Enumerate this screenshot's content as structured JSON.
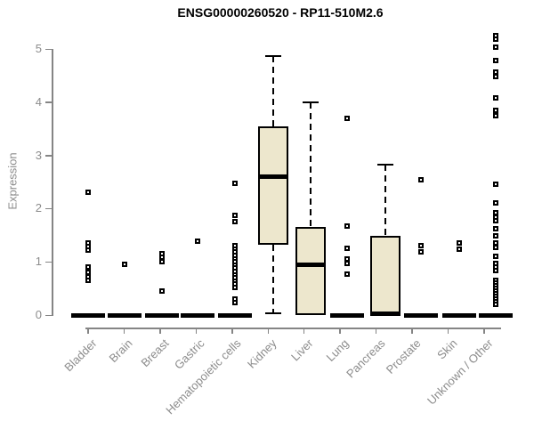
{
  "colors": {
    "box_fill": "#EDE7CD",
    "box_stroke": "#000000",
    "axis": "#858585",
    "label_text": "#8c8c8c",
    "title_text": "#000000",
    "background": "#ffffff"
  },
  "chart_data": {
    "type": "box",
    "title": "ENSG00000260520 - RP11-510M2.6",
    "xlabel": "",
    "ylabel": "Expression",
    "ylim": [
      0,
      5.3
    ],
    "yticks": [
      0,
      1,
      2,
      3,
      4,
      5
    ],
    "grid": false,
    "legend": false,
    "categories": [
      "Bladder",
      "Brain",
      "Breast",
      "Gastric",
      "Hematopoietic cells",
      "Kidney",
      "Liver",
      "Lung",
      "Pancreas",
      "Prostate",
      "Skin",
      "Unknown / Other"
    ],
    "boxes": [
      {
        "category": "Bladder",
        "q1": 0,
        "median": 0,
        "q3": 0,
        "whisker_low": 0,
        "whisker_high": 0,
        "outliers": [
          2.3,
          1.35,
          1.28,
          1.22,
          0.9,
          0.8,
          0.72,
          0.65
        ]
      },
      {
        "category": "Brain",
        "q1": 0,
        "median": 0,
        "q3": 0,
        "whisker_low": 0,
        "whisker_high": 0,
        "outliers": [
          0.95
        ]
      },
      {
        "category": "Breast",
        "q1": 0,
        "median": 0,
        "q3": 0,
        "whisker_low": 0,
        "whisker_high": 0,
        "outliers": [
          1.15,
          1.08,
          1.0,
          0.45
        ]
      },
      {
        "category": "Gastric",
        "q1": 0,
        "median": 0,
        "q3": 0,
        "whisker_low": 0,
        "whisker_high": 0,
        "outliers": [
          1.38
        ]
      },
      {
        "category": "Hematopoietic cells",
        "q1": 0,
        "median": 0,
        "q3": 0,
        "whisker_low": 0,
        "whisker_high": 0,
        "outliers": [
          2.48,
          1.88,
          1.76,
          1.3,
          1.24,
          1.18,
          1.12,
          1.06,
          1.0,
          0.94,
          0.88,
          0.82,
          0.76,
          0.7,
          0.64,
          0.58,
          0.52,
          0.3,
          0.24
        ]
      },
      {
        "category": "Kidney",
        "q1": 1.32,
        "median": 2.6,
        "q3": 3.55,
        "whisker_low": 0.03,
        "whisker_high": 4.87,
        "outliers": []
      },
      {
        "category": "Liver",
        "q1": 0,
        "median": 0.95,
        "q3": 1.65,
        "whisker_low": 0,
        "whisker_high": 4.0,
        "outliers": []
      },
      {
        "category": "Lung",
        "q1": 0,
        "median": 0,
        "q3": 0,
        "whisker_low": 0,
        "whisker_high": 0,
        "outliers": [
          3.7,
          1.67,
          1.25,
          1.05,
          0.97,
          0.77
        ]
      },
      {
        "category": "Pancreas",
        "q1": 0,
        "median": 0.02,
        "q3": 1.48,
        "whisker_low": 0,
        "whisker_high": 2.83,
        "outliers": []
      },
      {
        "category": "Prostate",
        "q1": 0,
        "median": 0,
        "q3": 0,
        "whisker_low": 0,
        "whisker_high": 0,
        "outliers": [
          2.55,
          1.3,
          1.18
        ]
      },
      {
        "category": "Skin",
        "q1": 0,
        "median": 0,
        "q3": 0,
        "whisker_low": 0,
        "whisker_high": 0,
        "outliers": [
          1.35,
          1.24
        ]
      },
      {
        "category": "Unknown / Other",
        "q1": 0,
        "median": 0,
        "q3": 0,
        "whisker_low": 0,
        "whisker_high": 0,
        "outliers": [
          5.25,
          5.18,
          5.03,
          4.78,
          4.57,
          4.48,
          4.08,
          3.84,
          3.74,
          2.45,
          2.1,
          1.92,
          1.84,
          1.78,
          1.63,
          1.49,
          1.35,
          1.27,
          1.1,
          0.97,
          0.9,
          0.83,
          0.66,
          0.6,
          0.55,
          0.5,
          0.45,
          0.4,
          0.35,
          0.3,
          0.25,
          0.2
        ]
      }
    ]
  }
}
